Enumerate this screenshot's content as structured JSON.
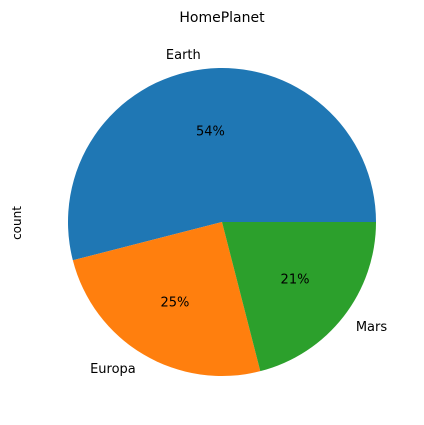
{
  "chart_data": {
    "type": "pie",
    "title": "HomePlanet",
    "ylabel": "count",
    "xlabel": "",
    "categories": [
      "Earth",
      "Europa",
      "Mars"
    ],
    "values": [
      54,
      25,
      21
    ],
    "value_labels": [
      "54%",
      "25%",
      "21%"
    ],
    "colors": [
      "#1f77b4",
      "#ff7f0e",
      "#2ca02c"
    ],
    "start_angle_deg": 0,
    "direction": "counterclockwise",
    "legend": "none"
  }
}
